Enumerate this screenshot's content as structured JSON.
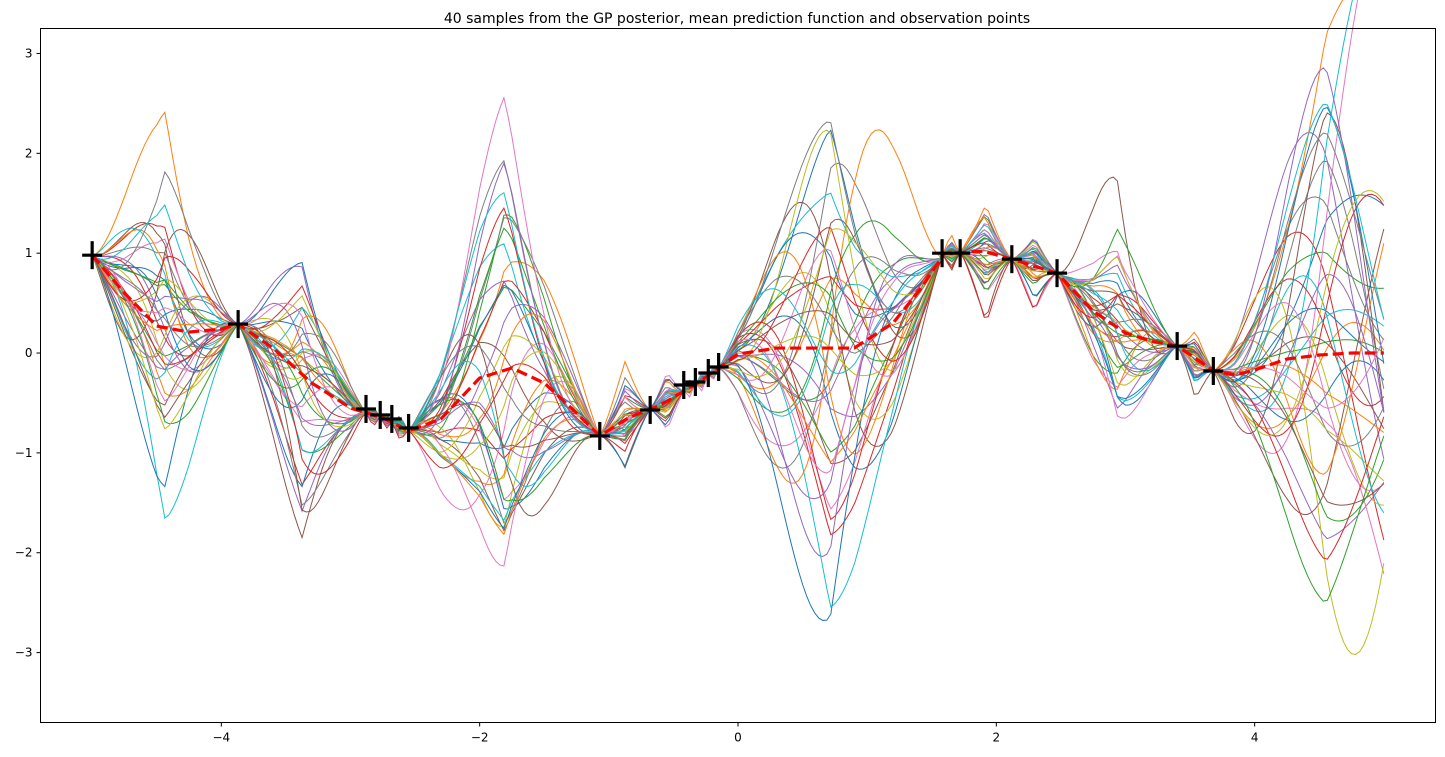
{
  "chart_data": {
    "type": "line",
    "title": "40 samples from the GP posterior, mean prediction function and observation points",
    "xlabel": "",
    "ylabel": "",
    "xlim": [
      -5.4,
      5.4
    ],
    "ylim": [
      -3.7,
      3.25
    ],
    "x_ticks": [
      -4,
      -2,
      0,
      2,
      4
    ],
    "x_tick_labels": [
      "−4",
      "−2",
      "0",
      "2",
      "4"
    ],
    "y_ticks": [
      -3,
      -2,
      -1,
      0,
      1,
      2,
      3
    ],
    "y_tick_labels": [
      "−3",
      "−2",
      "−1",
      "0",
      "1",
      "2",
      "3"
    ],
    "grid": false,
    "legend": "none",
    "sample_count": 40,
    "sample_colors": [
      "#1f77b4",
      "#ff7f0e",
      "#2ca02c",
      "#d62728",
      "#9467bd",
      "#8c564b",
      "#e377c2",
      "#7f7f7f",
      "#bcbd22",
      "#17becf"
    ],
    "observations": {
      "marker": "plus",
      "color": "#000000",
      "points": [
        {
          "x": -5.0,
          "y": 0.98
        },
        {
          "x": -3.87,
          "y": 0.29
        },
        {
          "x": -2.88,
          "y": -0.56
        },
        {
          "x": -2.77,
          "y": -0.62
        },
        {
          "x": -2.68,
          "y": -0.66
        },
        {
          "x": -2.55,
          "y": -0.75
        },
        {
          "x": -1.07,
          "y": -0.83
        },
        {
          "x": -0.68,
          "y": -0.57
        },
        {
          "x": -0.42,
          "y": -0.32
        },
        {
          "x": -0.33,
          "y": -0.29
        },
        {
          "x": -0.23,
          "y": -0.2
        },
        {
          "x": -0.15,
          "y": -0.14
        },
        {
          "x": 1.58,
          "y": 1.0
        },
        {
          "x": 1.72,
          "y": 1.0
        },
        {
          "x": 2.12,
          "y": 0.94
        },
        {
          "x": 2.47,
          "y": 0.8
        },
        {
          "x": 3.4,
          "y": 0.07
        },
        {
          "x": 3.68,
          "y": -0.18
        }
      ]
    },
    "mean": {
      "color": "#ff0000",
      "x": [
        -5.0,
        -4.75,
        -4.5,
        -4.25,
        -4.0,
        -3.87,
        -3.6,
        -3.3,
        -3.0,
        -2.75,
        -2.55,
        -2.3,
        -2.0,
        -1.75,
        -1.5,
        -1.25,
        -1.07,
        -0.85,
        -0.6,
        -0.3,
        0.0,
        0.3,
        0.6,
        0.9,
        1.2,
        1.4,
        1.6,
        1.9,
        2.12,
        2.47,
        2.75,
        3.0,
        3.2,
        3.4,
        3.55,
        3.68,
        3.85,
        4.0,
        4.25,
        4.5,
        4.75,
        5.0
      ],
      "y": [
        0.98,
        0.6,
        0.27,
        0.21,
        0.24,
        0.29,
        0.05,
        -0.3,
        -0.55,
        -0.65,
        -0.78,
        -0.66,
        -0.25,
        -0.15,
        -0.3,
        -0.6,
        -0.83,
        -0.65,
        -0.52,
        -0.29,
        -0.01,
        0.05,
        0.05,
        0.05,
        0.3,
        0.62,
        1.0,
        1.02,
        0.94,
        0.8,
        0.42,
        0.2,
        0.12,
        0.07,
        -0.06,
        -0.18,
        -0.22,
        -0.17,
        -0.06,
        -0.02,
        0.0,
        0.0
      ]
    }
  }
}
